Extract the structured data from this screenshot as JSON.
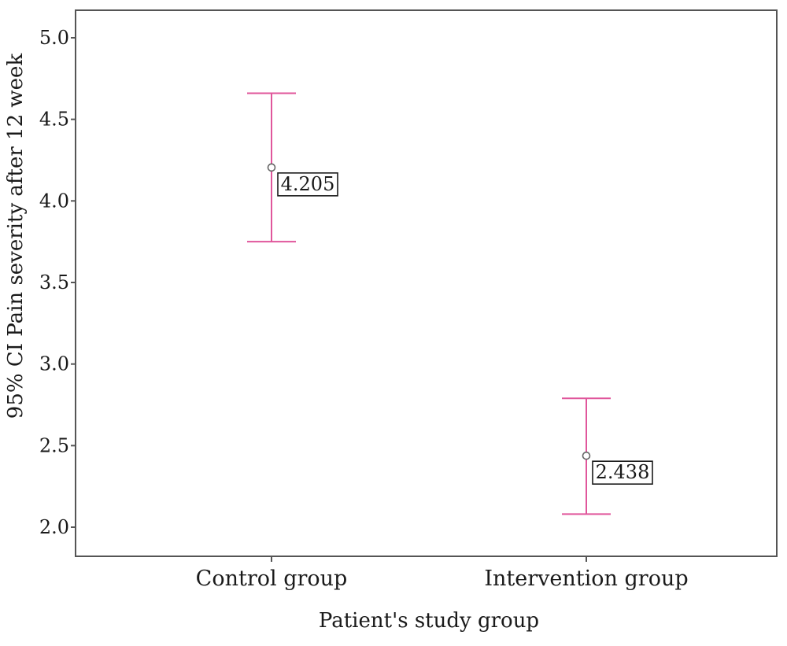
{
  "chart_data": {
    "type": "errorbar",
    "title": "",
    "xlabel": "Patient's study group",
    "ylabel": "95% CI Pain severity after 12 week",
    "ylim": [
      1.85,
      5.15
    ],
    "yticks": [
      2.0,
      2.5,
      3.0,
      3.5,
      4.0,
      4.5,
      5.0
    ],
    "ytick_labels": [
      "2.0",
      "2.5",
      "3.0",
      "3.5",
      "4.0",
      "4.5",
      "5.0"
    ],
    "categories": [
      "Control group",
      "Intervention group"
    ],
    "means": [
      4.205,
      2.438
    ],
    "mean_labels": [
      "4.205",
      "2.438"
    ],
    "ci_lower": [
      3.75,
      2.08
    ],
    "ci_upper": [
      4.66,
      2.79
    ],
    "grid": false,
    "legend": "none",
    "colors": {
      "errorbar": "#e0569b",
      "marker": "#666666",
      "frame": "#555555",
      "text": "#1a1a1a"
    }
  }
}
